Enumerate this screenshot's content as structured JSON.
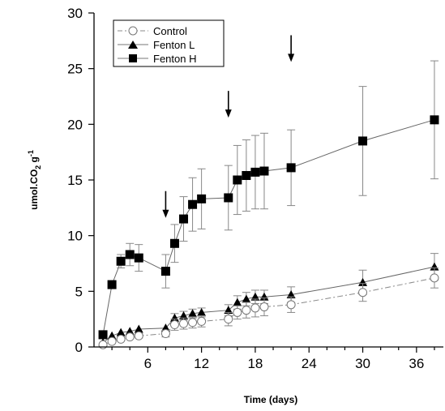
{
  "chart_data": {
    "type": "line",
    "title": "",
    "xlabel": "Time (days)",
    "ylabel": {
      "prefix": "umol.CO",
      "sub": "2",
      "mid": " g",
      "sup": "-1"
    },
    "xlim": [
      0,
      39
    ],
    "ylim": [
      0,
      30
    ],
    "xticks": [
      6,
      12,
      18,
      24,
      30,
      36
    ],
    "yticks": [
      0,
      5,
      10,
      15,
      20,
      25,
      30
    ],
    "grid": false,
    "legend_position": "top-left",
    "series": [
      {
        "name": "Control",
        "marker": "open-circle",
        "line": "dash-dot",
        "x": [
          1,
          2,
          3,
          4,
          5,
          8,
          9,
          10,
          11,
          12,
          15,
          16,
          17,
          18,
          19,
          22,
          30,
          38
        ],
        "y": [
          0.2,
          0.5,
          0.7,
          0.9,
          1.0,
          1.2,
          2.0,
          2.1,
          2.2,
          2.3,
          2.5,
          3.1,
          3.3,
          3.5,
          3.6,
          3.8,
          4.9,
          6.2
        ],
        "err": [
          0,
          0,
          0,
          0,
          0.2,
          0.3,
          0.5,
          0.5,
          0.5,
          0.5,
          0.6,
          0.6,
          0.7,
          0.8,
          0.8,
          0.7,
          0.8,
          0.9
        ]
      },
      {
        "name": "Fenton L",
        "marker": "filled-triangle",
        "line": "solid",
        "x": [
          1,
          2,
          3,
          4,
          5,
          8,
          9,
          10,
          11,
          12,
          15,
          16,
          17,
          18,
          19,
          22,
          30,
          38
        ],
        "y": [
          0.4,
          1.0,
          1.3,
          1.4,
          1.6,
          1.7,
          2.6,
          2.8,
          3.0,
          3.1,
          3.3,
          4.0,
          4.3,
          4.5,
          4.5,
          4.7,
          5.8,
          7.2
        ],
        "err": [
          0,
          0,
          0,
          0,
          0,
          0,
          0.4,
          0.4,
          0.4,
          0.4,
          0.5,
          0.6,
          0.6,
          0.6,
          0.6,
          0.7,
          1.1,
          1.2
        ]
      },
      {
        "name": "Fenton H",
        "marker": "filled-square",
        "line": "solid",
        "x": [
          1,
          2,
          3,
          4,
          5,
          8,
          9,
          10,
          11,
          12,
          15,
          16,
          17,
          18,
          19,
          22,
          30,
          38
        ],
        "y": [
          1.1,
          5.6,
          7.7,
          8.3,
          8.0,
          6.8,
          9.3,
          11.5,
          12.8,
          13.3,
          13.4,
          15.0,
          15.4,
          15.7,
          15.8,
          16.1,
          18.5,
          20.4
        ],
        "err": [
          0,
          0,
          0.6,
          1.0,
          1.2,
          1.5,
          1.7,
          2.0,
          2.4,
          2.7,
          2.9,
          3.1,
          3.2,
          3.3,
          3.4,
          3.4,
          4.9,
          5.3
        ]
      }
    ],
    "annotations": [
      {
        "type": "arrow-down",
        "x": 8,
        "from_y": 14.0,
        "to_y": 11.6
      },
      {
        "type": "arrow-down",
        "x": 15,
        "from_y": 23.0,
        "to_y": 20.6
      },
      {
        "type": "arrow-down",
        "x": 22,
        "from_y": 28.0,
        "to_y": 25.6
      }
    ]
  }
}
